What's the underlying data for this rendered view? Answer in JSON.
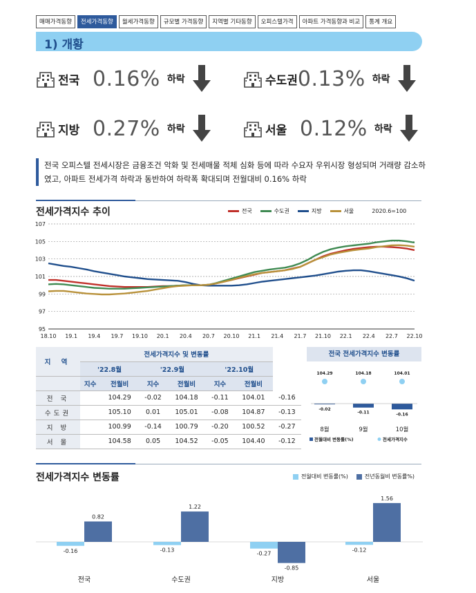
{
  "tabs": [
    "매매가격동향",
    "전세가격동향",
    "월세가격동향",
    "규모별 가격동향",
    "지역별 기타동향",
    "오피스텔가격",
    "아파트 가격동향과 비교",
    "통계 개요"
  ],
  "section_title": "1) 개황",
  "stats": [
    {
      "region": "전국",
      "pct": "0.16%",
      "word": "하락"
    },
    {
      "region": "수도권",
      "pct": "0.13%",
      "word": "하락"
    },
    {
      "region": "지방",
      "pct": "0.27%",
      "word": "하락"
    },
    {
      "region": "서울",
      "pct": "0.12%",
      "word": "하락"
    }
  ],
  "description": "전국 오피스텔 전세시장은 금융조건 악화 및 전세매물 적체 심화 등에 따라 수요자 우위시장 형성되며 거래량 감소하였고, 아파트 전세가격 하락과 동반하여 하락폭 확대되며 전월대비 0.16% 하락",
  "colors": {
    "nation": "#c0302a",
    "capital": "#3f8a52",
    "local": "#1f4e8c",
    "seoul": "#b8913a",
    "accent": "#2e5a9c",
    "light_bar": "#8fd0f2",
    "dark_bar": "#4e6fa3"
  },
  "chart_data": [
    {
      "type": "line",
      "title": "전세가격지수 추이",
      "note": "2020.6=100",
      "x": [
        "18.10",
        "18.11",
        "18.12",
        "19.1",
        "19.2",
        "19.3",
        "19.4",
        "19.5",
        "19.6",
        "19.7",
        "19.8",
        "19.9",
        "19.10",
        "19.11",
        "19.12",
        "20.1",
        "20.2",
        "20.3",
        "20.4",
        "20.5",
        "20.6",
        "20.7",
        "20.8",
        "20.9",
        "20.10",
        "20.11",
        "20.12",
        "21.1",
        "21.2",
        "21.3",
        "21.4",
        "21.5",
        "21.6",
        "21.7",
        "21.8",
        "21.9",
        "21.10",
        "21.11",
        "21.12",
        "22.1",
        "22.2",
        "22.3",
        "22.4",
        "22.5",
        "22.6",
        "22.7",
        "22.8",
        "22.9",
        "22.10"
      ],
      "x_tick_labels": [
        "18.10",
        "19.1",
        "19.4",
        "19.7",
        "19.10",
        "20.1",
        "20.4",
        "20.7",
        "20.10",
        "21.1",
        "21.4",
        "21.7",
        "21.10",
        "22.1",
        "22.4",
        "22.7",
        "22.10"
      ],
      "ylim": [
        95,
        107
      ],
      "y_ticks": [
        95,
        97,
        99,
        101,
        103,
        105,
        107
      ],
      "grid": true,
      "legend_position": "top-right",
      "series": [
        {
          "name": "전국",
          "color": "#c0302a",
          "values": [
            100.6,
            100.6,
            100.5,
            100.4,
            100.3,
            100.2,
            100.1,
            100.0,
            99.9,
            99.85,
            99.8,
            99.8,
            99.8,
            99.8,
            99.85,
            99.9,
            99.9,
            99.95,
            100.0,
            100.0,
            100.0,
            100.05,
            100.2,
            100.4,
            100.6,
            100.8,
            101.0,
            101.2,
            101.4,
            101.5,
            101.6,
            101.7,
            101.9,
            102.1,
            102.5,
            102.9,
            103.3,
            103.6,
            103.8,
            104.0,
            104.15,
            104.25,
            104.35,
            104.4,
            104.4,
            104.35,
            104.29,
            104.18,
            104.01
          ]
        },
        {
          "name": "수도권",
          "color": "#3f8a52",
          "values": [
            100.1,
            100.15,
            100.1,
            100.0,
            99.9,
            99.8,
            99.7,
            99.65,
            99.6,
            99.6,
            99.6,
            99.65,
            99.7,
            99.75,
            99.8,
            99.85,
            99.9,
            99.95,
            100.0,
            100.0,
            100.0,
            100.05,
            100.25,
            100.5,
            100.75,
            101.0,
            101.25,
            101.5,
            101.65,
            101.8,
            101.9,
            102.0,
            102.2,
            102.5,
            102.9,
            103.4,
            103.8,
            104.1,
            104.3,
            104.45,
            104.55,
            104.65,
            104.75,
            104.9,
            105.0,
            105.1,
            105.1,
            105.01,
            104.87
          ]
        },
        {
          "name": "지방",
          "color": "#1f4e8c",
          "values": [
            102.5,
            102.35,
            102.2,
            102.1,
            101.95,
            101.8,
            101.6,
            101.45,
            101.3,
            101.15,
            101.0,
            100.9,
            100.8,
            100.7,
            100.65,
            100.6,
            100.55,
            100.5,
            100.35,
            100.15,
            100.0,
            99.95,
            99.95,
            99.95,
            99.95,
            100.0,
            100.1,
            100.25,
            100.4,
            100.5,
            100.6,
            100.7,
            100.8,
            100.9,
            101.0,
            101.1,
            101.25,
            101.4,
            101.55,
            101.65,
            101.7,
            101.7,
            101.6,
            101.45,
            101.3,
            101.15,
            100.99,
            100.79,
            100.52
          ]
        },
        {
          "name": "서울",
          "color": "#b8913a",
          "values": [
            99.3,
            99.35,
            99.35,
            99.25,
            99.15,
            99.05,
            99.0,
            98.95,
            98.95,
            99.0,
            99.05,
            99.15,
            99.25,
            99.35,
            99.5,
            99.65,
            99.8,
            99.9,
            99.95,
            100.0,
            100.0,
            100.05,
            100.2,
            100.4,
            100.6,
            100.85,
            101.05,
            101.25,
            101.4,
            101.5,
            101.6,
            101.7,
            101.85,
            102.1,
            102.5,
            102.9,
            103.2,
            103.5,
            103.7,
            103.85,
            104.0,
            104.1,
            104.2,
            104.35,
            104.45,
            104.55,
            104.58,
            104.52,
            104.4
          ]
        }
      ]
    },
    {
      "type": "table",
      "title": "전세가격지수 및 변동률",
      "region_header": "지 역",
      "months": [
        "'22.8월",
        "'22.9월",
        "'22.10월"
      ],
      "subheaders": [
        "지수",
        "전월비"
      ],
      "rows": [
        {
          "region": "전 국",
          "values": [
            "104.29",
            "-0.02",
            "104.18",
            "-0.11",
            "104.01",
            "-0.16"
          ]
        },
        {
          "region": "수도권",
          "values": [
            "105.10",
            "0.01",
            "105.01",
            "-0.08",
            "104.87",
            "-0.13"
          ]
        },
        {
          "region": "지 방",
          "values": [
            "100.99",
            "-0.14",
            "100.79",
            "-0.20",
            "100.52",
            "-0.27"
          ]
        },
        {
          "region": "서 울",
          "values": [
            "104.58",
            "0.05",
            "104.52",
            "-0.05",
            "104.40",
            "-0.12"
          ]
        }
      ]
    },
    {
      "type": "bar",
      "title": "전국 전세가격지수 변동률",
      "categories": [
        "8월",
        "9월",
        "10월"
      ],
      "series": [
        {
          "name": "전월대비 변동률(%)",
          "color": "#2e5a9c",
          "values": [
            -0.02,
            -0.11,
            -0.16
          ]
        },
        {
          "name": "전세가격지수",
          "color": "#8fd0f2",
          "values": [
            104.29,
            104.18,
            104.01
          ]
        }
      ],
      "legend_position": "bottom"
    },
    {
      "type": "bar",
      "title": "전세가격지수 변동률",
      "categories": [
        "전국",
        "수도권",
        "지방",
        "서울"
      ],
      "series": [
        {
          "name": "전월대비 변동률(%)",
          "color": "#8fd0f2",
          "values": [
            -0.16,
            -0.13,
            -0.27,
            -0.12
          ]
        },
        {
          "name": "전년동월비 변동률%)",
          "color": "#4e6fa3",
          "values": [
            0.82,
            1.22,
            -0.85,
            1.56
          ]
        }
      ],
      "legend_position": "top-right"
    }
  ]
}
